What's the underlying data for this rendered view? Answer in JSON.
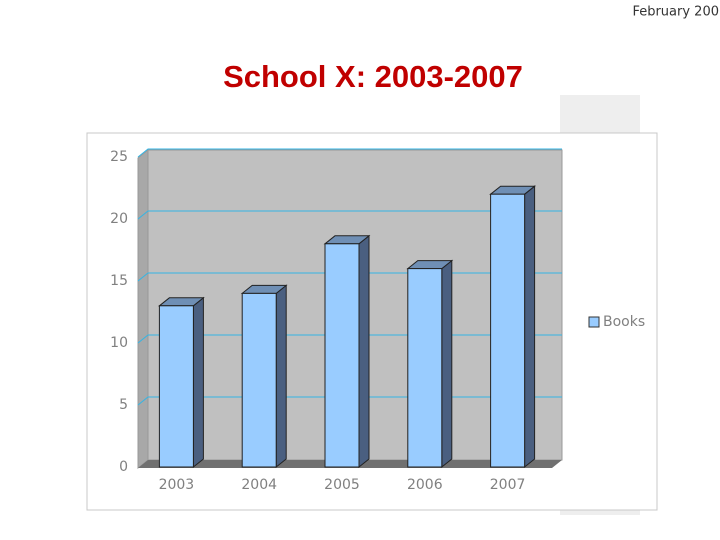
{
  "header": "February 200",
  "chart_data": {
    "type": "bar",
    "title": "School X: 2003-2007",
    "categories": [
      "2003",
      "2004",
      "2005",
      "2006",
      "2007"
    ],
    "series": [
      {
        "name": "Books",
        "color": "#99ccff",
        "values": [
          13,
          14,
          18,
          16,
          22
        ]
      }
    ],
    "ylim": [
      0,
      25
    ],
    "yticks": [
      0,
      5,
      10,
      15,
      20,
      25
    ],
    "grid": true,
    "legend": "right"
  }
}
